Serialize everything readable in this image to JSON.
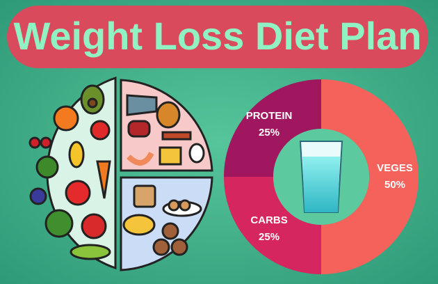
{
  "chart_data": {
    "type": "pie",
    "title": "Weight Loss Diet Plan",
    "categories": [
      "VEGES",
      "CARBS",
      "PROTEIN"
    ],
    "values": [
      50,
      25,
      25
    ],
    "value_labels": [
      "50%",
      "25%",
      "25%"
    ],
    "colors": [
      "#f5615b",
      "#d6265f",
      "#a0175f"
    ]
  }
}
